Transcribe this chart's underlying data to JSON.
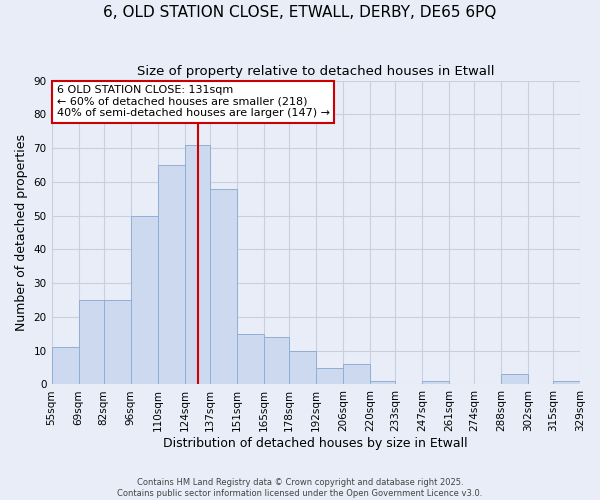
{
  "title": "6, OLD STATION CLOSE, ETWALL, DERBY, DE65 6PQ",
  "subtitle": "Size of property relative to detached houses in Etwall",
  "xlabel": "Distribution of detached houses by size in Etwall",
  "ylabel": "Number of detached properties",
  "bin_edges": [
    55,
    69,
    82,
    96,
    110,
    124,
    137,
    151,
    165,
    178,
    192,
    206,
    220,
    233,
    247,
    261,
    274,
    288,
    302,
    315,
    329
  ],
  "bar_heights": [
    11,
    25,
    25,
    50,
    65,
    71,
    58,
    15,
    14,
    10,
    5,
    6,
    1,
    0,
    1,
    0,
    0,
    3,
    0,
    1
  ],
  "bar_color": "#ccd9ee",
  "bar_edgecolor": "#92aed4",
  "vline_x": 131,
  "vline_color": "#cc0000",
  "ylim": [
    0,
    90
  ],
  "yticks": [
    0,
    10,
    20,
    30,
    40,
    50,
    60,
    70,
    80,
    90
  ],
  "annotation_title": "6 OLD STATION CLOSE: 131sqm",
  "annotation_line1": "← 60% of detached houses are smaller (218)",
  "annotation_line2": "40% of semi-detached houses are larger (147) →",
  "annotation_box_facecolor": "#ffffff",
  "annotation_box_edgecolor": "#cc0000",
  "fig_facecolor": "#e8edf8",
  "ax_facecolor": "#e8edf8",
  "grid_color": "#c8d0e0",
  "footer_line1": "Contains HM Land Registry data © Crown copyright and database right 2025.",
  "footer_line2": "Contains public sector information licensed under the Open Government Licence v3.0.",
  "title_fontsize": 11,
  "subtitle_fontsize": 9.5,
  "axis_label_fontsize": 9,
  "tick_fontsize": 7.5,
  "annotation_fontsize": 8
}
